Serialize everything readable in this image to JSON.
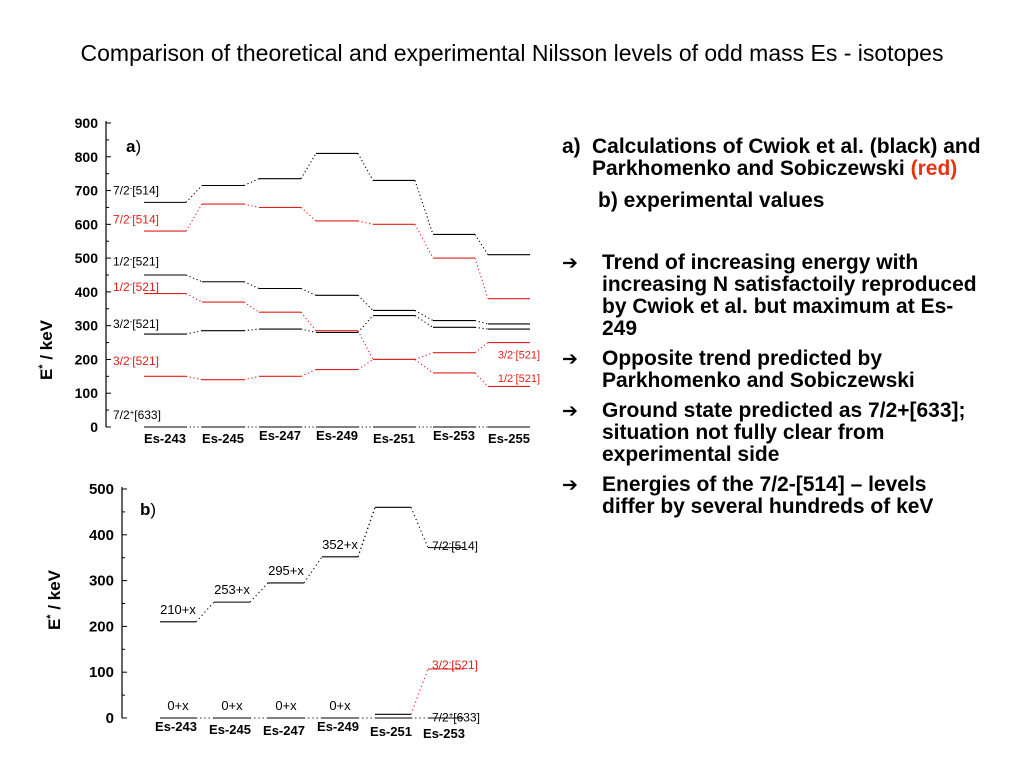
{
  "title": "Comparison of theoretical and experimental Nilsson levels of odd mass Es - isotopes",
  "colors": {
    "black": "#000000",
    "red": "#e0201a",
    "note_red": "#e63312"
  },
  "notes": {
    "caption_a_tag": "a)",
    "caption_a_text": "Calculations of Cwiok et al. (black) and Parkhomenko and Sobiczewski",
    "caption_a_red": "(red)",
    "caption_b": "b) experimental values",
    "bullet_icon": "right-arrow-icon",
    "bullets": [
      "Trend of increasing energy with increasing N satisfactoily reproduced by Cwiok et al. but maximum at Es-249",
      "Opposite trend predicted by Parkhomenko and Sobiczewski",
      "Ground state predicted as 7/2+[633]; situation not fully clear from experimental side",
      "Energies of the 7/2-[514] – levels differ by several hundreds of keV"
    ]
  },
  "chart_data": [
    {
      "type": "level-scheme",
      "panel": "a)",
      "ylabel": "E* / keV",
      "ylim": [
        0,
        900
      ],
      "yticks": [
        0,
        100,
        200,
        300,
        400,
        500,
        600,
        700,
        800,
        900
      ],
      "categories": [
        "Es-243",
        "Es-245",
        "Es-247",
        "Es-249",
        "Es-251",
        "Es-253",
        "Es-255"
      ],
      "series": [
        {
          "color": "black",
          "values": [
            0,
            0,
            0,
            0,
            0,
            0,
            0
          ]
        },
        {
          "color": "black",
          "values": [
            275,
            285,
            290,
            280,
            330,
            295,
            290
          ]
        },
        {
          "color": "black",
          "values": [
            450,
            430,
            410,
            390,
            345,
            315,
            305
          ]
        },
        {
          "color": "black",
          "values": [
            665,
            715,
            735,
            810,
            730,
            570,
            510
          ]
        },
        {
          "color": "red",
          "values": [
            150,
            140,
            150,
            170,
            200,
            160,
            120
          ]
        },
        {
          "color": "red",
          "values": [
            395,
            370,
            340,
            285,
            200,
            220,
            250
          ]
        },
        {
          "color": "red",
          "values": [
            580,
            660,
            650,
            610,
            600,
            500,
            380
          ]
        }
      ],
      "labels_left": [
        {
          "text": "7/2",
          "sup": "-",
          "rest": "[514]",
          "value": 700,
          "color": "black"
        },
        {
          "text": "7/2",
          "sup": "-",
          "rest": "[514]",
          "value": 615,
          "color": "red"
        },
        {
          "text": "1/2",
          "sup": "-",
          "rest": "[521]",
          "value": 490,
          "color": "black"
        },
        {
          "text": "1/2",
          "sup": "-",
          "rest": "[521]",
          "value": 415,
          "color": "red"
        },
        {
          "text": "3/2",
          "sup": "-",
          "rest": "[521]",
          "value": 305,
          "color": "black"
        },
        {
          "text": "3/2",
          "sup": "-",
          "rest": "[521]",
          "value": 195,
          "color": "red"
        },
        {
          "text": "7/2",
          "sup": "+",
          "rest": "[633]",
          "value": 35,
          "color": "black"
        }
      ],
      "labels_right": [
        {
          "text": "3/2",
          "sup": "-",
          "rest": "[521]",
          "value": 215,
          "color": "red"
        },
        {
          "text": "1/2",
          "sup": "-",
          "rest": "[521]",
          "value": 145,
          "color": "red"
        }
      ]
    },
    {
      "type": "level-scheme",
      "panel": "b)",
      "ylabel": "E* / keV",
      "ylim": [
        0,
        500
      ],
      "yticks": [
        0,
        100,
        200,
        300,
        400,
        500
      ],
      "categories": [
        "Es-243",
        "Es-245",
        "Es-247",
        "Es-249",
        "Es-251",
        "Es-253"
      ],
      "levels": [
        {
          "series": "ground",
          "values": [
            0,
            0,
            0,
            0,
            0,
            0
          ],
          "labels": [
            "0+x",
            "0+x",
            "0+x",
            "0+x",
            "",
            ""
          ]
        },
        {
          "series": "upper",
          "values": [
            210,
            253,
            295,
            352,
            460,
            372
          ],
          "labels": [
            "210+x",
            "253+x",
            "295+x",
            "352+x",
            "",
            ""
          ]
        },
        {
          "series": "es253_red",
          "values": [
            null,
            null,
            null,
            null,
            null,
            107
          ]
        },
        {
          "series": "es251_low",
          "values": [
            null,
            null,
            null,
            null,
            8,
            null
          ]
        }
      ],
      "side_labels": [
        {
          "text": "7/2",
          "sup": "-",
          "rest": "[514]",
          "value": 400,
          "color": "black"
        },
        {
          "text": "3/2",
          "sup": "-",
          "rest": "[521]",
          "value": 140,
          "color": "red"
        },
        {
          "text": "7/2",
          "sup": "+",
          "rest": "[633]",
          "value": 25,
          "color": "black"
        }
      ]
    }
  ]
}
